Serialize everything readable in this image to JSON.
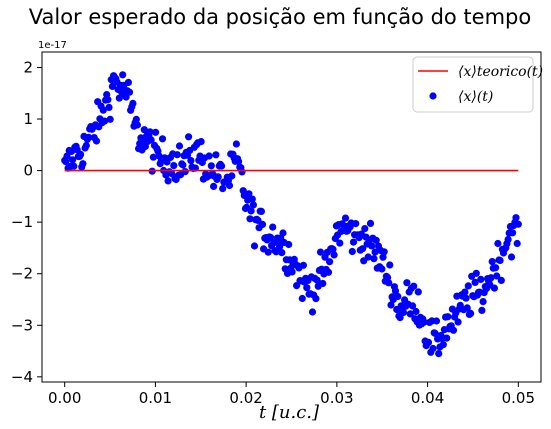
{
  "chart_data": {
    "type": "scatter",
    "title": "Valor esperado da posição em função do tempo",
    "xlabel": "t [u.c.]",
    "ylabel": "",
    "y_offset_label": "1e-17",
    "xlim": [
      -0.0025,
      0.0525
    ],
    "ylim": [
      -4.1,
      2.3
    ],
    "x_ticks": [
      "0.00",
      "0.01",
      "0.02",
      "0.03",
      "0.04",
      "0.05"
    ],
    "x_tick_values": [
      0.0,
      0.01,
      0.02,
      0.03,
      0.04,
      0.05
    ],
    "y_ticks": [
      "2",
      "1",
      "0",
      "−1",
      "−2",
      "−3",
      "−4"
    ],
    "y_tick_values": [
      2,
      1,
      0,
      -1,
      -2,
      -3,
      -4
    ],
    "grid": false,
    "legend_placement": "top-right",
    "colors": {
      "theory": "#ff0000",
      "points": "#0000ff"
    },
    "series": [
      {
        "name": "⟨x⟩teorico(t)",
        "kind": "line",
        "x": [
          0.0,
          0.05
        ],
        "y": [
          0,
          0
        ]
      },
      {
        "name": "⟨x⟩(t)",
        "kind": "scatter",
        "anchors_x": [
          0.0,
          0.001,
          0.002,
          0.003,
          0.004,
          0.005,
          0.0055,
          0.006,
          0.0065,
          0.007,
          0.008,
          0.009,
          0.01,
          0.011,
          0.012,
          0.013,
          0.014,
          0.015,
          0.016,
          0.017,
          0.018,
          0.019,
          0.02,
          0.021,
          0.022,
          0.023,
          0.024,
          0.025,
          0.026,
          0.027,
          0.028,
          0.029,
          0.03,
          0.031,
          0.032,
          0.033,
          0.034,
          0.035,
          0.036,
          0.037,
          0.038,
          0.039,
          0.04,
          0.041,
          0.042,
          0.043,
          0.044,
          0.045,
          0.046,
          0.047,
          0.048,
          0.049,
          0.05
        ],
        "anchors_y": [
          0.0,
          0.3,
          0.4,
          0.7,
          1.0,
          1.5,
          1.8,
          1.6,
          1.6,
          1.4,
          0.7,
          0.6,
          0.3,
          0.2,
          0.2,
          0.1,
          0.3,
          0.3,
          0.0,
          -0.1,
          -0.2,
          0.2,
          -0.6,
          -1.0,
          -1.2,
          -1.3,
          -1.4,
          -1.7,
          -2.1,
          -2.3,
          -2.1,
          -1.9,
          -1.2,
          -1.1,
          -1.3,
          -1.3,
          -1.5,
          -1.8,
          -2.2,
          -2.7,
          -2.5,
          -2.6,
          -3.2,
          -3.4,
          -3.0,
          -2.9,
          -2.6,
          -2.4,
          -2.4,
          -2.0,
          -1.7,
          -1.2,
          -1.2
        ],
        "point_count": 400,
        "spread": 0.28
      }
    ]
  }
}
